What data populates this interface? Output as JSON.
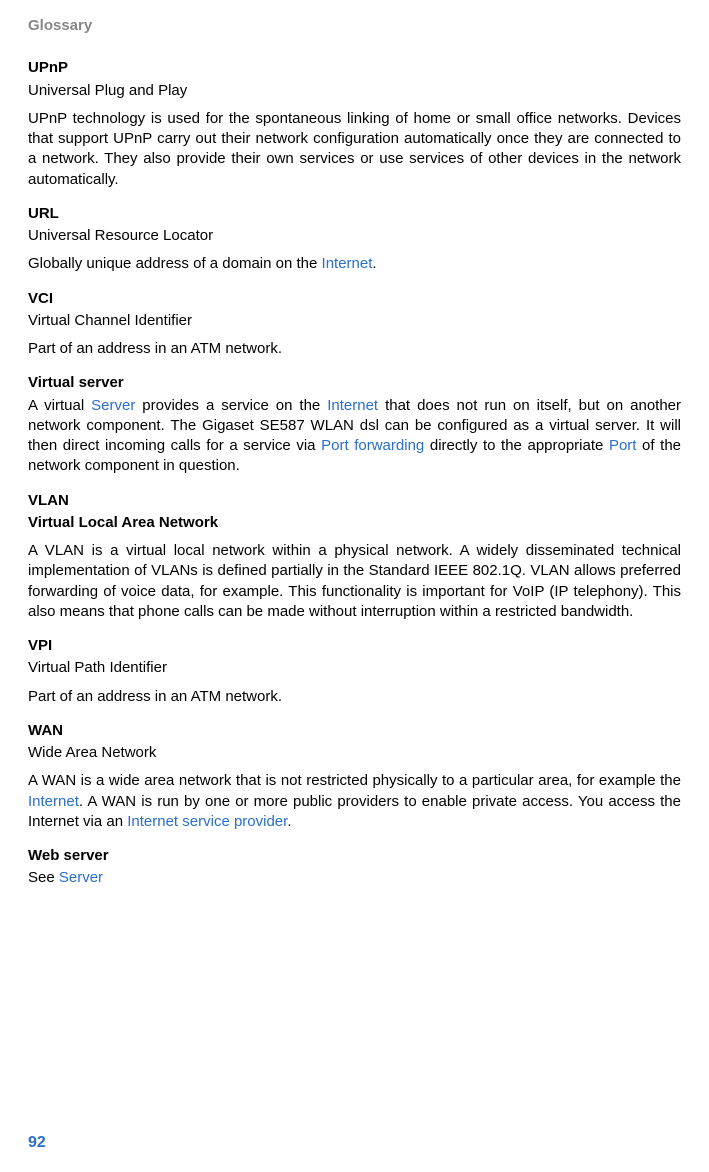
{
  "header": "Glossary",
  "page_number": "92",
  "entries": {
    "upnp": {
      "term": "UPnP",
      "sub": "Universal Plug and Play",
      "def": "UPnP technology is used for the spontaneous linking of home or small office networks. Devices that support UPnP carry out their network configuration automatically once they are connected to a network. They also provide their own services or use services of other devices in the network automatically."
    },
    "url": {
      "term": "URL",
      "sub": "Universal Resource Locator",
      "def_pre": "Globally unique address of a domain on the ",
      "link": "Internet",
      "def_post": "."
    },
    "vci": {
      "term": "VCI",
      "sub": "Virtual Channel Identifier",
      "def": "Part of an address in an ATM network."
    },
    "vserver": {
      "term": "Virtual server",
      "p1_1": "A virtual ",
      "l1": "Server",
      "p1_2": " provides a service on the ",
      "l2": "Internet",
      "p1_3": " that does not run on itself, but on another network component. The Gigaset SE587 WLAN dsl can be configured as a virtual server. It will then direct incoming calls for a service via ",
      "l3": "Port forwarding",
      "p1_4": " directly to the appropriate ",
      "l4": "Port",
      "p1_5": " of the network component in question."
    },
    "vlan": {
      "term": "VLAN",
      "sub": "Virtual Local Area Network",
      "def": "A VLAN is a virtual local network within a physical network. A widely disseminated technical implementation of VLANs is defined partially in the Standard IEEE 802.1Q. VLAN allows preferred forwarding of voice data, for example. This functionality is important for VoIP (IP telephony). This also means that phone calls can be made without interruption within a restricted bandwidth."
    },
    "vpi": {
      "term": "VPI",
      "sub": "Virtual Path Identifier",
      "def": "Part of an address in an ATM network."
    },
    "wan": {
      "term": "WAN",
      "sub": "Wide Area Network",
      "p1": "A WAN is a wide area network that is not restricted physically to a particular area, for example the ",
      "l1": "Internet",
      "p2": ". A WAN is run by one or more public providers to enable private access. You access the Internet via an ",
      "l2": "Internet service provider",
      "p3": "."
    },
    "webserver": {
      "term": "Web server",
      "see": "See ",
      "link": "Server"
    }
  }
}
